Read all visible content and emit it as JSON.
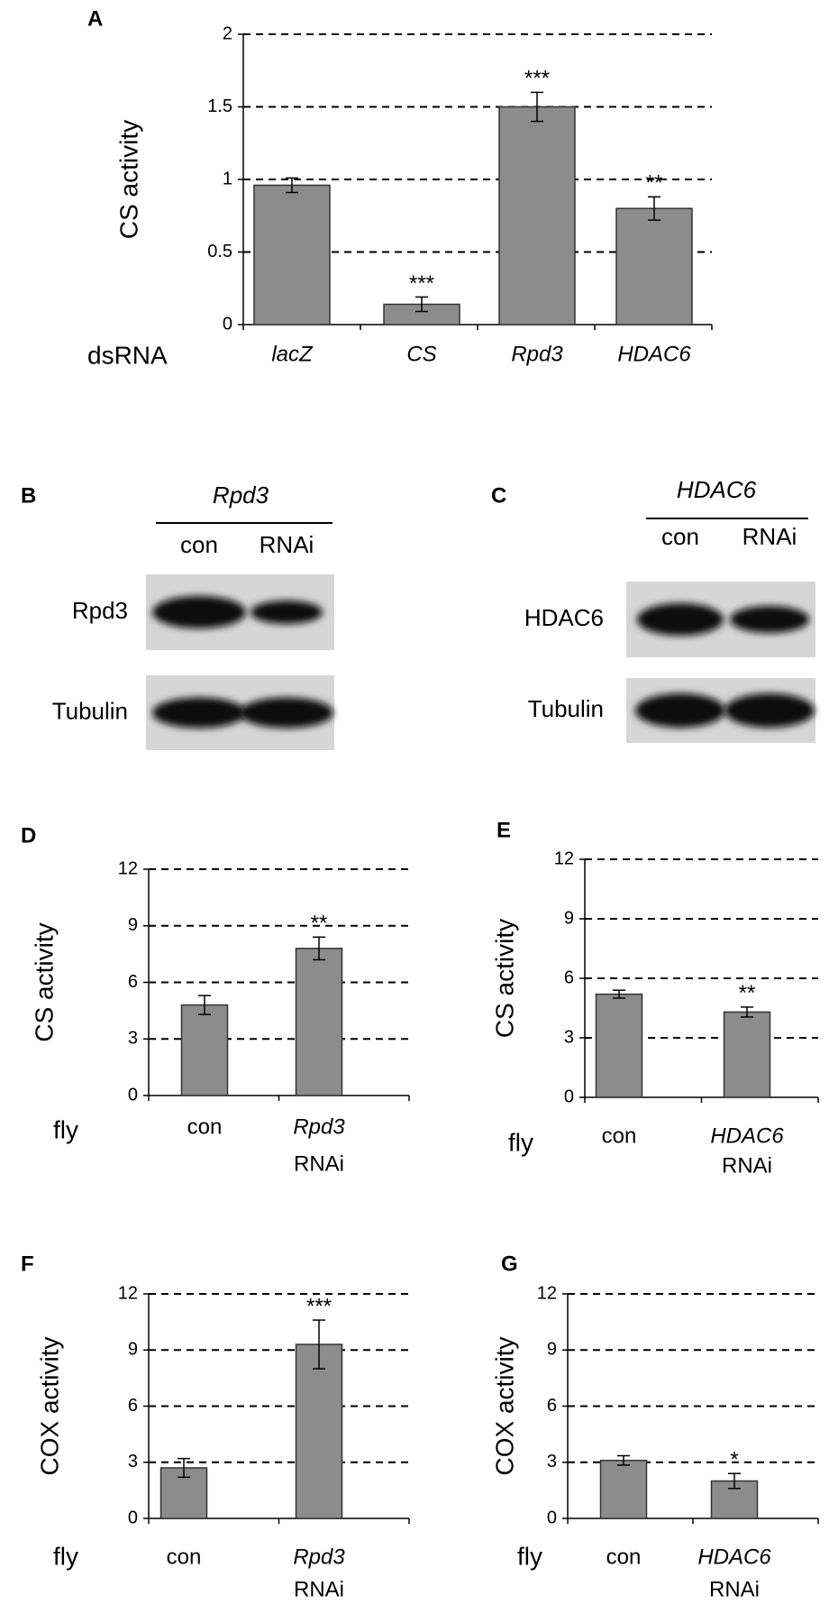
{
  "chart_data": [
    {
      "type": "bar",
      "panel": "A",
      "ylabel": "CS activity",
      "xlabel": "dsRNA",
      "categories": [
        "lacZ",
        "CS",
        "Rpd3",
        "HDAC6"
      ],
      "category_sublabels": [
        null,
        null,
        null,
        null
      ],
      "values": [
        0.96,
        0.14,
        1.5,
        0.8
      ],
      "errors": [
        0.05,
        0.05,
        0.1,
        0.08
      ],
      "annotations": [
        null,
        "***",
        "***",
        "**"
      ],
      "color": "#8c8c8c",
      "ylim": [
        0,
        2
      ],
      "yticks": [
        0,
        0.5,
        1,
        1.5,
        2
      ],
      "grid": true
    },
    {
      "type": "bar",
      "panel": "D",
      "ylabel": "CS activity",
      "xlabel": "fly",
      "categories": [
        "con",
        "Rpd3"
      ],
      "category_sublabels": [
        null,
        "RNAi"
      ],
      "values": [
        4.8,
        7.8
      ],
      "errors": [
        0.5,
        0.6
      ],
      "annotations": [
        null,
        "**"
      ],
      "color": "#8c8c8c",
      "ylim": [
        0,
        12
      ],
      "yticks": [
        0,
        3,
        6,
        9,
        12
      ],
      "grid": true
    },
    {
      "type": "bar",
      "panel": "E",
      "ylabel": "CS activity",
      "xlabel": "fly",
      "categories": [
        "con",
        "HDAC6"
      ],
      "category_sublabels": [
        null,
        "RNAi"
      ],
      "values": [
        5.2,
        4.3
      ],
      "errors": [
        0.2,
        0.25
      ],
      "annotations": [
        null,
        "**"
      ],
      "color": "#8c8c8c",
      "ylim": [
        0,
        12
      ],
      "yticks": [
        0,
        3,
        6,
        9,
        12
      ],
      "grid": true
    },
    {
      "type": "bar",
      "panel": "F",
      "ylabel": "COX activity",
      "xlabel": "fly",
      "categories": [
        "con",
        "Rpd3"
      ],
      "category_sublabels": [
        null,
        "RNAi"
      ],
      "values": [
        2.7,
        9.3
      ],
      "errors": [
        0.5,
        1.3
      ],
      "annotations": [
        null,
        "***"
      ],
      "color": "#8c8c8c",
      "ylim": [
        0,
        12
      ],
      "yticks": [
        0,
        3,
        6,
        9,
        12
      ],
      "grid": true
    },
    {
      "type": "bar",
      "panel": "G",
      "ylabel": "COX activity",
      "xlabel": "fly",
      "categories": [
        "con",
        "HDAC6"
      ],
      "category_sublabels": [
        null,
        "RNAi"
      ],
      "values": [
        3.1,
        2.0
      ],
      "errors": [
        0.25,
        0.4
      ],
      "annotations": [
        null,
        "*"
      ],
      "color": "#8c8c8c",
      "ylim": [
        0,
        12
      ],
      "yticks": [
        0,
        3,
        6,
        9,
        12
      ],
      "grid": true
    }
  ],
  "blots": [
    {
      "panel": "B",
      "gene": "Rpd3",
      "lanes": [
        "con",
        "RNAi"
      ],
      "rows": [
        "Rpd3",
        "Tubulin"
      ]
    },
    {
      "panel": "C",
      "gene": "HDAC6",
      "lanes": [
        "con",
        "RNAi"
      ],
      "rows": [
        "HDAC6",
        "Tubulin"
      ]
    }
  ]
}
